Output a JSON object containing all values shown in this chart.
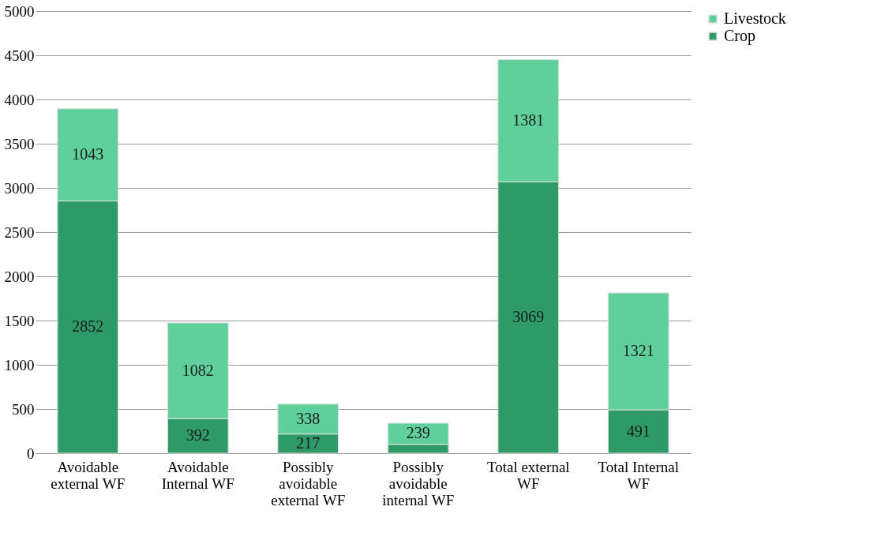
{
  "chart_data": {
    "type": "bar",
    "stacked": true,
    "categories": [
      "Avoidable external WF",
      "Avoidable Internal WF",
      "Possibly avoidable external WF",
      "Possibly avoidable internal WF",
      "Total external WF",
      "Total Internal WF"
    ],
    "series": [
      {
        "name": "Crop",
        "color": "#2e9a68",
        "values": [
          2852,
          392,
          217,
          100,
          3069,
          491
        ],
        "value_labels": [
          "2852",
          "392",
          "217",
          null,
          "3069",
          "491"
        ]
      },
      {
        "name": "Livestock",
        "color": "#5fd09c",
        "values": [
          1043,
          1082,
          338,
          239,
          1381,
          1321
        ],
        "value_labels": [
          "1043",
          "1082",
          "338",
          "239",
          "1381",
          "1321"
        ]
      }
    ],
    "ylim": [
      0,
      5000
    ],
    "yticks": [
      0,
      500,
      1000,
      1500,
      2000,
      2500,
      3000,
      3500,
      4000,
      4500,
      5000
    ],
    "grid": "y",
    "legend": "right"
  }
}
